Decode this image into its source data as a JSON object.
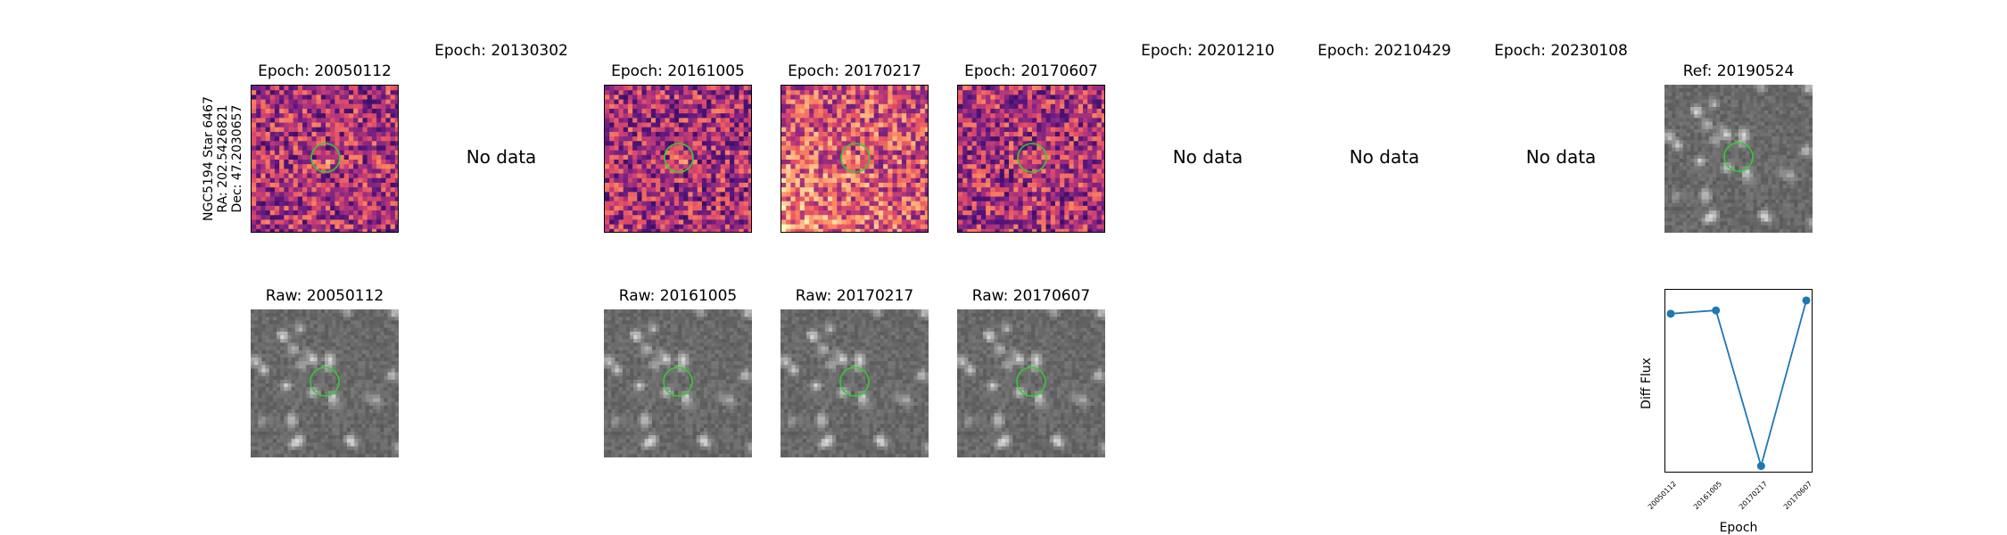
{
  "target": {
    "lines": [
      "NGC5194 Star 6467",
      "RA: 202.5426821",
      "Dec: 47.2030657"
    ]
  },
  "epochs": [
    {
      "title": "Epoch: 20050112",
      "raw_title": "Raw: 20050112",
      "has_data": true
    },
    {
      "title": "Epoch: 20130302",
      "raw_title": "",
      "has_data": false,
      "no_data_text": "No data"
    },
    {
      "title": "Epoch: 20161005",
      "raw_title": "Raw: 20161005",
      "has_data": true
    },
    {
      "title": "Epoch: 20170217",
      "raw_title": "Raw: 20170217",
      "has_data": true
    },
    {
      "title": "Epoch: 20170607",
      "raw_title": "Raw: 20170607",
      "has_data": true
    },
    {
      "title": "Epoch: 20201210",
      "raw_title": "",
      "has_data": false,
      "no_data_text": "No data"
    },
    {
      "title": "Epoch: 20210429",
      "raw_title": "",
      "has_data": false,
      "no_data_text": "No data"
    },
    {
      "title": "Epoch: 20230108",
      "raw_title": "",
      "has_data": false,
      "no_data_text": "No data"
    }
  ],
  "reference": {
    "title": "Ref: 20190524"
  },
  "colors": {
    "aperture": "#33cc33",
    "series": "#1f77b4",
    "diff_colormap": "magma",
    "raw_colormap": "gray"
  },
  "chart_data": {
    "type": "line",
    "title": "",
    "xlabel": "Epoch",
    "ylabel": "Diff Flux",
    "categories": [
      "20050112",
      "20161005",
      "20170217",
      "20170607"
    ],
    "values": [
      0.8,
      0.82,
      -0.12,
      0.88
    ],
    "ylim": [
      -0.16,
      0.95
    ],
    "show_yticks": false,
    "grid": false,
    "markers": "circle"
  }
}
